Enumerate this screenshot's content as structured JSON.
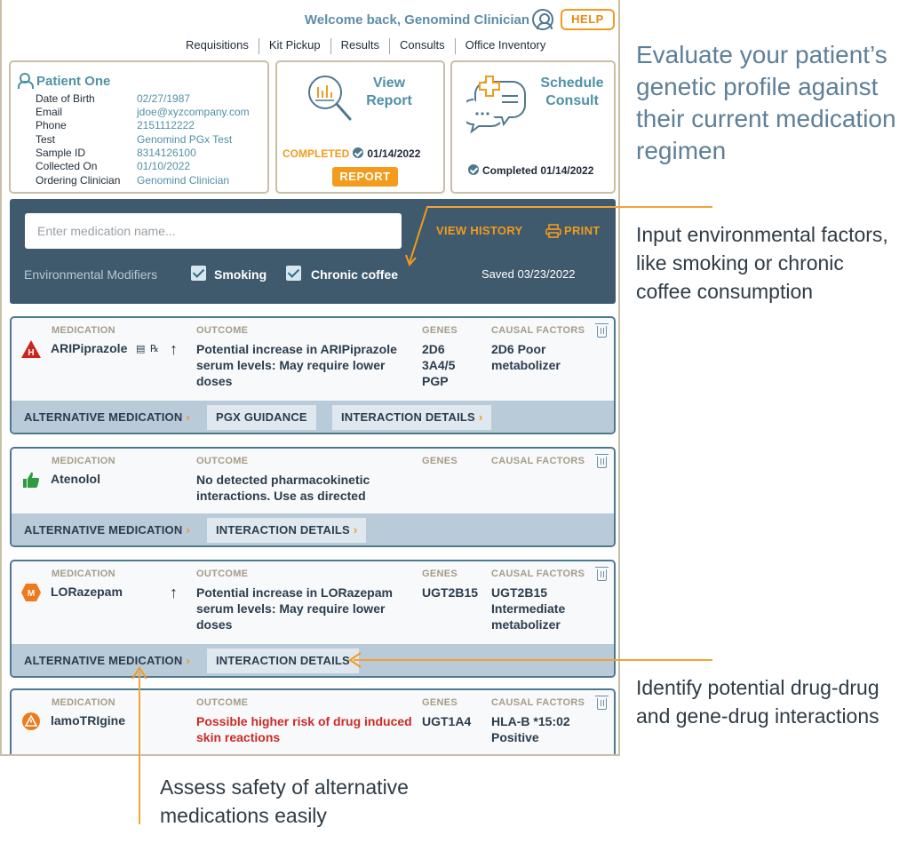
{
  "header": {
    "welcome": "Welcome back, Genomind Clinician",
    "help_label": "HELP",
    "nav": [
      "Requisitions",
      "Kit Pickup",
      "Results",
      "Consults",
      "Office Inventory"
    ]
  },
  "patient": {
    "name": "Patient One",
    "fields": [
      {
        "label": "Date of Birth",
        "value": "02/27/1987"
      },
      {
        "label": "Email",
        "value": "jdoe@xyzcompany.com"
      },
      {
        "label": "Phone",
        "value": "2151112222"
      },
      {
        "label": "Test",
        "value": "Genomind PGx Test"
      },
      {
        "label": "Sample ID",
        "value": "8314126100"
      },
      {
        "label": "Collected On",
        "value": "01/10/2022"
      },
      {
        "label": "Ordering Clinician",
        "value": "Genomind Clinician"
      }
    ]
  },
  "report_card": {
    "title_line1": "View",
    "title_line2": "Report",
    "status": "COMPLETED",
    "date": "01/14/2022",
    "button_label": "REPORT"
  },
  "consult_card": {
    "title_line1": "Schedule",
    "title_line2": "Consult",
    "status": "Completed 01/14/2022"
  },
  "search_panel": {
    "placeholder": "Enter medication name...",
    "view_history": "VIEW HISTORY",
    "print": "PRINT",
    "env_label": "Environmental Modifiers",
    "modifiers": [
      {
        "label": "Smoking",
        "checked": true
      },
      {
        "label": "Chronic coffee",
        "checked": true
      }
    ],
    "saved": "Saved 03/23/2022"
  },
  "columns": {
    "medication": "MEDICATION",
    "outcome": "OUTCOME",
    "genes": "GENES",
    "causal": "CAUSAL FACTORS"
  },
  "medications": [
    {
      "badge": "H",
      "badge_color": "#c8261f",
      "name": "ARIPiprazole",
      "direction": "↑",
      "outcome": "Potential increase in ARIPiprazole serum levels: May require lower doses",
      "genes": [
        "2D6",
        "3A4/5",
        "PGP"
      ],
      "causal": "2D6 Poor metabolizer",
      "tabs": [
        "ALTERNATIVE MEDICATION",
        "PGX GUIDANCE",
        "INTERACTION DETAILS"
      ]
    },
    {
      "badge": "thumbs-up",
      "badge_color": "#2e9b3f",
      "name": "Atenolol",
      "outcome": "No detected pharmacokinetic interactions. Use as directed",
      "genes": [],
      "causal": "",
      "tabs": [
        "ALTERNATIVE MEDICATION",
        "INTERACTION DETAILS"
      ]
    },
    {
      "badge": "M",
      "badge_color": "#ee7a1c",
      "name": "LORazepam",
      "direction": "↑",
      "outcome": "Potential increase in LORazepam serum levels: May require lower doses",
      "genes": [
        "UGT2B15"
      ],
      "causal": "UGT2B15 Intermediate metabolizer",
      "tabs": [
        "ALTERNATIVE MEDICATION",
        "INTERACTION DETAILS"
      ]
    },
    {
      "badge": "!",
      "badge_color": "#ee7a1c",
      "name": "lamoTRIgine",
      "outcome": "Possible higher risk of drug induced skin reactions",
      "genes": [
        "UGT1A4"
      ],
      "causal": "HLA-B *15:02 Positive",
      "tabs": []
    }
  ],
  "callouts": {
    "evaluate": "Evaluate your patient’s genetic profile against their current medication regimen",
    "environmental": "Input environmental factors, like smoking or chronic coffee consumption",
    "identify": "Identify potential drug-drug and gene-drug  interactions",
    "assess": "Assess safety of alternative medications easily"
  },
  "colors": {
    "accent_orange": "#f29b1d",
    "brand_teal": "#4f91a5",
    "panel_dark": "#3f5a6d",
    "warning_red": "#cd2a24"
  },
  "icons": [
    "user-icon",
    "patient-icon",
    "magnifier-report-icon",
    "consult-bubble-icon",
    "check-icon",
    "printer-icon",
    "trash-icon",
    "thumbs-up-icon",
    "hex-badge-icon",
    "warning-icon",
    "arrow-up-icon"
  ]
}
